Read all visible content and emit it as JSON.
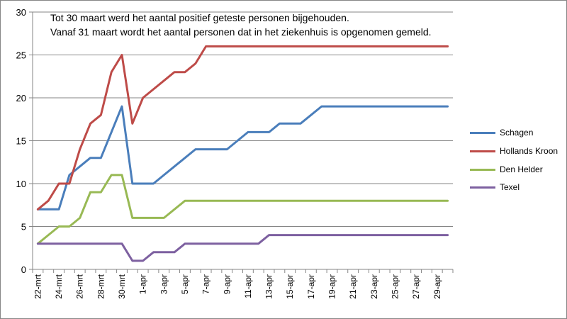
{
  "chart_data": {
    "type": "line",
    "title": "",
    "annotations": [
      "Tot 30 maart werd het aantal positief geteste personen bijgehouden.",
      "Vanaf 31 maart wordt het aantal personen dat in het ziekenhuis is opgenomen gemeld."
    ],
    "xlabel": "",
    "ylabel": "",
    "ylim": [
      0,
      30
    ],
    "yticks": [
      0,
      5,
      10,
      15,
      20,
      25,
      30
    ],
    "grid": "horizontal",
    "legend_position": "right",
    "categories": [
      "22-mrt",
      "23-mrt",
      "24-mrt",
      "25-mrt",
      "26-mrt",
      "27-mrt",
      "28-mrt",
      "29-mrt",
      "30-mrt",
      "31-mrt",
      "1-apr",
      "2-apr",
      "3-apr",
      "4-apr",
      "5-apr",
      "6-apr",
      "7-apr",
      "8-apr",
      "9-apr",
      "10-apr",
      "11-apr",
      "12-apr",
      "13-apr",
      "14-apr",
      "15-apr",
      "16-apr",
      "17-apr",
      "18-apr",
      "19-apr",
      "20-apr",
      "21-apr",
      "22-apr",
      "23-apr",
      "24-apr",
      "25-apr",
      "26-apr",
      "27-apr",
      "28-apr",
      "29-apr",
      "30-apr"
    ],
    "tick_labels": [
      "22-mrt",
      "24-mrt",
      "26-mrt",
      "28-mrt",
      "30-mrt",
      "1-apr",
      "3-apr",
      "5-apr",
      "7-apr",
      "9-apr",
      "11-apr",
      "13-apr",
      "15-apr",
      "17-apr",
      "19-apr",
      "21-apr",
      "23-apr",
      "25-apr",
      "27-apr",
      "29-apr"
    ],
    "series": [
      {
        "name": "Schagen",
        "color": "#4a7ebb",
        "values": [
          7,
          7,
          7,
          11,
          12,
          13,
          13,
          16,
          19,
          10,
          10,
          10,
          11,
          12,
          13,
          14,
          14,
          14,
          14,
          15,
          16,
          16,
          16,
          17,
          17,
          17,
          18,
          19,
          19,
          19,
          19,
          19,
          19,
          19,
          19,
          19,
          19,
          19,
          19,
          19
        ]
      },
      {
        "name": "Hollands Kroon",
        "color": "#be4b48",
        "values": [
          7,
          8,
          10,
          10,
          14,
          17,
          18,
          23,
          25,
          17,
          20,
          21,
          22,
          23,
          23,
          24,
          26,
          26,
          26,
          26,
          26,
          26,
          26,
          26,
          26,
          26,
          26,
          26,
          26,
          26,
          26,
          26,
          26,
          26,
          26,
          26,
          26,
          26,
          26,
          26
        ]
      },
      {
        "name": "Den Helder",
        "color": "#98b954",
        "values": [
          3,
          4,
          5,
          5,
          6,
          9,
          9,
          11,
          11,
          6,
          6,
          6,
          6,
          7,
          8,
          8,
          8,
          8,
          8,
          8,
          8,
          8,
          8,
          8,
          8,
          8,
          8,
          8,
          8,
          8,
          8,
          8,
          8,
          8,
          8,
          8,
          8,
          8,
          8,
          8
        ]
      },
      {
        "name": "Texel",
        "color": "#7d60a0",
        "values": [
          3,
          3,
          3,
          3,
          3,
          3,
          3,
          3,
          3,
          1,
          1,
          2,
          2,
          2,
          3,
          3,
          3,
          3,
          3,
          3,
          3,
          3,
          4,
          4,
          4,
          4,
          4,
          4,
          4,
          4,
          4,
          4,
          4,
          4,
          4,
          4,
          4,
          4,
          4,
          4
        ]
      }
    ]
  }
}
